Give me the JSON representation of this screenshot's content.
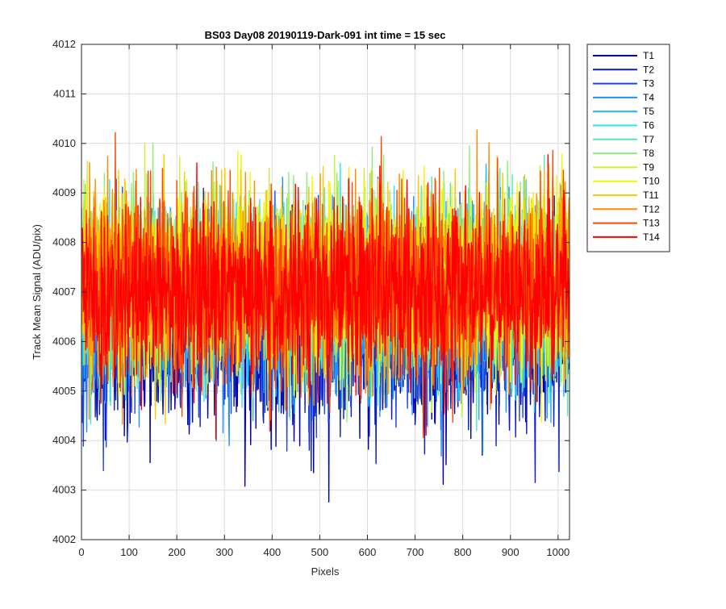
{
  "chart_data": {
    "type": "line",
    "title": "BS03 Day08 20190119-Dark-091 int time = 15 sec",
    "xlabel": "Pixels",
    "ylabel": "Track Mean Signal (ADU/pix)",
    "xlim": [
      0,
      1024
    ],
    "ylim": [
      4002,
      4012
    ],
    "xticks": [
      "0",
      "100",
      "200",
      "300",
      "400",
      "500",
      "600",
      "700",
      "800",
      "900",
      "1000"
    ],
    "yticks": [
      "4002",
      "4003",
      "4004",
      "4005",
      "4006",
      "4007",
      "4008",
      "4009",
      "4010",
      "4011",
      "4012"
    ],
    "grid": true,
    "legend_position": "outside-top-right",
    "x": {
      "start": 1,
      "end": 1024,
      "step": 1
    },
    "series": [
      {
        "name": "T1",
        "color": "#0000a8",
        "mean": 4006.1,
        "std": 0.9
      },
      {
        "name": "T2",
        "color": "#0a1ec8",
        "mean": 4006.3,
        "std": 0.9
      },
      {
        "name": "T3",
        "color": "#1e46e6",
        "mean": 4006.5,
        "std": 0.9
      },
      {
        "name": "T4",
        "color": "#1e90ff",
        "mean": 4006.7,
        "std": 0.9
      },
      {
        "name": "T5",
        "color": "#19b4ff",
        "mean": 4006.85,
        "std": 0.9
      },
      {
        "name": "T6",
        "color": "#2ee6f0",
        "mean": 4007.0,
        "std": 0.9
      },
      {
        "name": "T7",
        "color": "#5ae6b4",
        "mean": 4007.1,
        "std": 0.9
      },
      {
        "name": "T8",
        "color": "#8cf078",
        "mean": 4007.2,
        "std": 0.9
      },
      {
        "name": "T9",
        "color": "#c8f03c",
        "mean": 4007.25,
        "std": 0.9
      },
      {
        "name": "T10",
        "color": "#f5f500",
        "mean": 4007.25,
        "std": 0.9
      },
      {
        "name": "T11",
        "color": "#ffc800",
        "mean": 4007.25,
        "std": 0.9
      },
      {
        "name": "T12",
        "color": "#ff8c00",
        "mean": 4007.2,
        "std": 0.9
      },
      {
        "name": "T13",
        "color": "#ff4600",
        "mean": 4007.15,
        "std": 0.9
      },
      {
        "name": "T14",
        "color": "#ff0000",
        "mean": 4007.0,
        "std": 0.9
      }
    ]
  }
}
